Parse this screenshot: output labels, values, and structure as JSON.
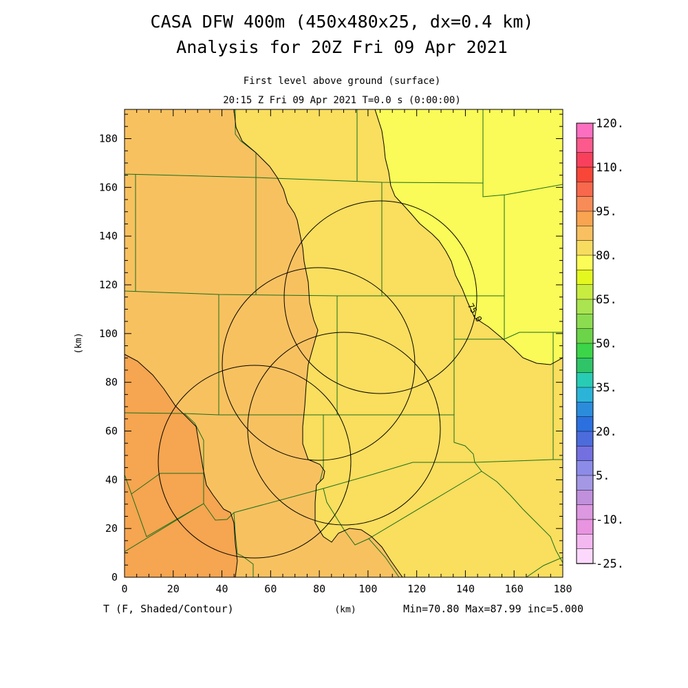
{
  "header": {
    "title_line1": "CASA DFW 400m (450x480x25, dx=0.4 km)",
    "title_line2": "Analysis for 20Z Fri 09 Apr 2021",
    "subtitle_line1": "First level above ground (surface)",
    "subtitle_line2": "20:15 Z Fri 09 Apr 2021    T=0.0 s (0:00:00)"
  },
  "axes": {
    "x_label": "(km)",
    "y_label": "(km)",
    "x_ticks": [
      "0",
      "20",
      "40",
      "60",
      "80",
      "100",
      "120",
      "140",
      "160",
      "180"
    ],
    "y_ticks": [
      "0",
      "20",
      "40",
      "60",
      "80",
      "100",
      "120",
      "140",
      "160",
      "180"
    ],
    "x_range": [
      0,
      180
    ],
    "y_range": [
      0,
      192
    ]
  },
  "footer": {
    "variable_label": "T (F, Shaded/Contour)",
    "units_label": "(km)",
    "stats": "Min=70.80 Max=87.99 inc=5.000"
  },
  "contour_label": "75.0",
  "colorbar": {
    "labels": [
      "120.",
      "110.",
      "95.",
      "80.",
      "65.",
      "50.",
      "35.",
      "20.",
      "5.",
      "-10.",
      "-25."
    ],
    "colors": [
      "#fc6fc0",
      "#fc5a8c",
      "#f8405c",
      "#f84638",
      "#f8684c",
      "#f88c58",
      "#f8a450",
      "#f8c060",
      "#f8dc60",
      "#fcfc58",
      "#e4f820",
      "#c8ec40",
      "#aae450",
      "#8cdc50",
      "#6cd448",
      "#3cd448",
      "#30c468",
      "#28ccb4",
      "#2cb4d8",
      "#2c8cdc",
      "#2c70e0",
      "#4c6cdc",
      "#7470e0",
      "#8c8ce8",
      "#a498e4",
      "#c090dc",
      "#dc98e0",
      "#e894e0",
      "#f4b8f0",
      "#fcd8fc"
    ],
    "vmin": -25,
    "vmax": 125
  },
  "colors": {
    "shade_warm": "#f6a550",
    "shade_mid": "#f8c160",
    "shade_cool": "#fade5e",
    "shade_coolest": "#fafa58",
    "county_lines": "#1a6e1a",
    "contour": "#000000"
  }
}
